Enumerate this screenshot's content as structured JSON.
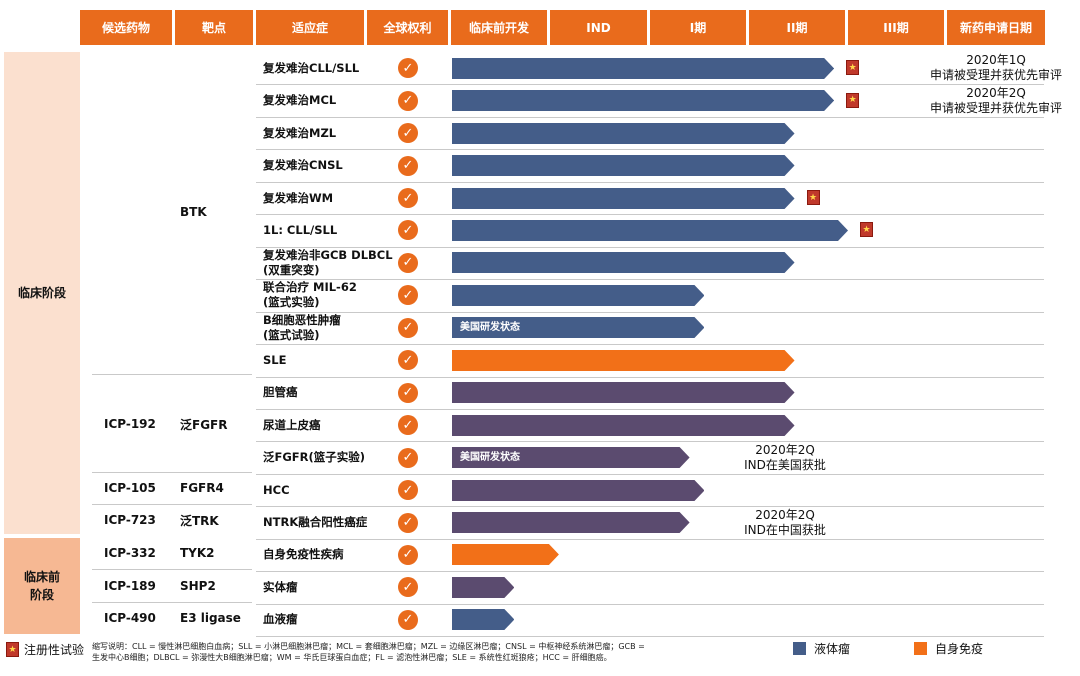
{
  "colors": {
    "liquid": "#445d89",
    "autoimmune": "#f27018",
    "fgfr": "#5b4b6f",
    "header": "#e96b1c",
    "stage": "#fbe0cf"
  },
  "headers": [
    "候选药物",
    "靶点",
    "适应症",
    "全球权利",
    "临床前开发",
    "IND",
    "I期",
    "II期",
    "III期",
    "新药申请日期"
  ],
  "stages": {
    "clinical": "临床阶段",
    "preclinical": "临床前\n阶段"
  },
  "groups": [
    {
      "drug": "",
      "target": "BTK"
    },
    {
      "drug": "ICP-192",
      "target": "泛FGFR"
    },
    {
      "drug": "ICP-105",
      "target": "FGFR4"
    },
    {
      "drug": "ICP-723",
      "target": "泛TRK"
    },
    {
      "drug": "ICP-332",
      "target": "TYK2"
    },
    {
      "drug": "ICP-189",
      "target": "SHP2"
    },
    {
      "drug": "ICP-490",
      "target": "E3 ligase"
    }
  ],
  "rows": [
    {
      "indication": "复发难治CLL/SLL",
      "phase": 3.86,
      "color": "liquid",
      "label": "",
      "star": true,
      "note": "2020年1Q\n申请被受理并获优先审评"
    },
    {
      "indication": "复发难治MCL",
      "phase": 3.86,
      "color": "liquid",
      "label": "",
      "star": true,
      "note": "2020年2Q\n申请被受理并获优先审评"
    },
    {
      "indication": "复发难治MZL",
      "phase": 3.46,
      "color": "liquid",
      "label": "",
      "star": false,
      "note": ""
    },
    {
      "indication": "复发难治CNSL",
      "phase": 3.46,
      "color": "liquid",
      "label": "",
      "star": false,
      "note": ""
    },
    {
      "indication": "复发难治WM",
      "phase": 3.46,
      "color": "liquid",
      "label": "",
      "star": true,
      "note": ""
    },
    {
      "indication": "1L: CLL/SLL",
      "phase": 4.0,
      "color": "liquid",
      "label": "",
      "star": true,
      "note": ""
    },
    {
      "indication": "复发难治非GCB DLBCL\n(双重突变)",
      "phase": 3.46,
      "color": "liquid",
      "label": "",
      "star": false,
      "note": ""
    },
    {
      "indication": "联合治疗 MIL-62\n(篮式实验)",
      "phase": 2.55,
      "color": "liquid",
      "label": "",
      "star": false,
      "note": ""
    },
    {
      "indication": "B细胞恶性肿瘤\n(篮式试验)",
      "phase": 2.55,
      "color": "liquid",
      "label": "美国研发状态",
      "star": false,
      "note": ""
    },
    {
      "indication": "SLE",
      "phase": 3.46,
      "color": "autoimmune",
      "label": "",
      "star": false,
      "note": ""
    },
    {
      "indication": "胆管癌",
      "phase": 3.46,
      "color": "fgfr",
      "label": "",
      "star": false,
      "note": ""
    },
    {
      "indication": "尿道上皮癌",
      "phase": 3.46,
      "color": "fgfr",
      "label": "",
      "star": false,
      "note": ""
    },
    {
      "indication": "泛FGFR(篮子实验)",
      "phase": 2.4,
      "color": "fgfr",
      "label": "美国研发状态",
      "star": false,
      "note": "2020年2Q\nIND在美国获批"
    },
    {
      "indication": "HCC",
      "phase": 2.55,
      "color": "fgfr",
      "label": "",
      "star": false,
      "note": ""
    },
    {
      "indication": "NTRK融合阳性癌症",
      "phase": 2.4,
      "color": "fgfr",
      "label": "",
      "star": false,
      "note": "2020年2Q\nIND在中国获批"
    },
    {
      "indication": "自身免疫性疾病",
      "phase": 1.08,
      "color": "autoimmune",
      "label": "",
      "star": false,
      "note": ""
    },
    {
      "indication": "实体瘤",
      "phase": 0.63,
      "color": "fgfr",
      "label": "",
      "star": false,
      "note": ""
    },
    {
      "indication": "血液瘤",
      "phase": 0.63,
      "color": "liquid",
      "label": "",
      "star": false,
      "note": ""
    }
  ],
  "legend": {
    "registration": "注册性试验",
    "liquid": "液体瘤",
    "autoimmune": "自身免疫"
  },
  "footnote": [
    "缩写说明：CLL = 慢性淋巴细胞白血病；SLL = 小淋巴细胞淋巴瘤；MCL = 套细胞淋巴瘤；MZL = 边缘区淋巴瘤；CNSL = 中枢神经系统淋巴瘤；GCB =",
    "生发中心B细胞；DLBCL = 弥漫性大B细胞淋巴瘤；WM = 华氏巨球蛋白血症；FL = 滤泡性淋巴瘤；SLE = 系统性红斑狼疮；HCC = 肝细胞癌。"
  ]
}
